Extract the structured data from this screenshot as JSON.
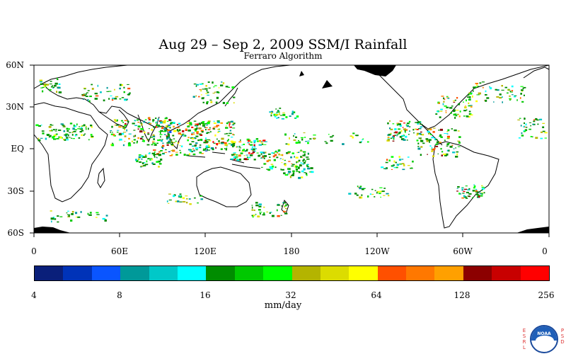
{
  "title": "Aug 29 – Sep 2, 2009 SSM/I Rainfall",
  "subtitle": "Ferraro Algorithm",
  "map": {
    "lat_labels": [
      "60N",
      "30N",
      "EQ",
      "30S",
      "60S"
    ],
    "lon_labels": [
      "0",
      "60E",
      "120E",
      "180",
      "120W",
      "60W",
      "0"
    ],
    "lat_range": [
      -60,
      60
    ],
    "lon_range": [
      0,
      360
    ]
  },
  "colorbar": {
    "colors": [
      "#0a1f7a",
      "#0033b8",
      "#0a55ff",
      "#009999",
      "#00c8c8",
      "#00ffff",
      "#008c00",
      "#00c800",
      "#00ff00",
      "#b4b400",
      "#dcdc00",
      "#ffff00",
      "#ff5000",
      "#ff7800",
      "#ffa000",
      "#8c0000",
      "#c80000",
      "#ff0000"
    ],
    "tick_labels": [
      "4",
      "8",
      "16",
      "32",
      "64",
      "128",
      "256"
    ],
    "unit": "mm/day"
  },
  "logo": {
    "left_letters": "ESRL",
    "right_letters": "PSD",
    "name": "noaa-logo"
  }
}
